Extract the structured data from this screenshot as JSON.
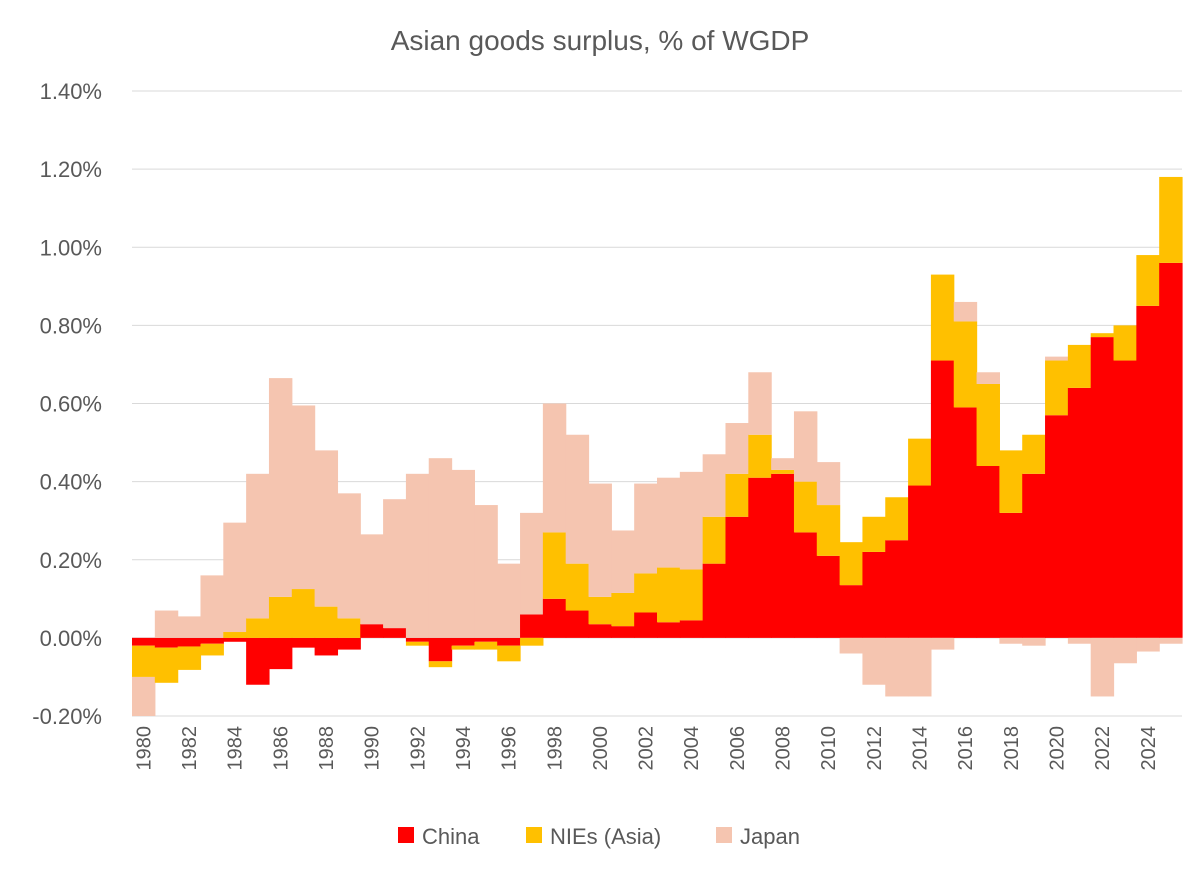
{
  "chart_data": {
    "type": "bar",
    "stacked": true,
    "title": "Asian goods surplus, % of WGDP",
    "xlabel": "",
    "ylabel": "",
    "ylim": [
      -0.002,
      0.014
    ],
    "yticks": [
      -0.002,
      0,
      0.002,
      0.004,
      0.006,
      0.008,
      0.01,
      0.012,
      0.014
    ],
    "ytick_labels": [
      "-0.20%",
      "0.00%",
      "0.20%",
      "0.40%",
      "0.60%",
      "0.80%",
      "1.00%",
      "1.20%",
      "1.40%"
    ],
    "grid": true,
    "legend_position": "bottom",
    "categories": [
      "1980",
      "1981",
      "1982",
      "1983",
      "1984",
      "1985",
      "1986",
      "1987",
      "1988",
      "1989",
      "1990",
      "1991",
      "1992",
      "1993",
      "1994",
      "1995",
      "1996",
      "1997",
      "1998",
      "1999",
      "2000",
      "2001",
      "2002",
      "2003",
      "2004",
      "2005",
      "2006",
      "2007",
      "2008",
      "2009",
      "2010",
      "2011",
      "2012",
      "2013",
      "2014",
      "2015",
      "2016",
      "2017",
      "2018",
      "2019",
      "2020",
      "2021",
      "2022",
      "2023",
      "2024",
      "2025"
    ],
    "x_tick_labels": [
      "1980",
      "1982",
      "1984",
      "1986",
      "1988",
      "1990",
      "1992",
      "1994",
      "1996",
      "1998",
      "2000",
      "2002",
      "2004",
      "2006",
      "2008",
      "2010",
      "2012",
      "2014",
      "2016",
      "2018",
      "2020",
      "2022",
      "2024"
    ],
    "series": [
      {
        "name": "China",
        "color": "#ff0000",
        "values": [
          -0.0002,
          -0.00025,
          -0.00022,
          -0.00015,
          -0.0001,
          -0.0012,
          -0.0008,
          -0.00025,
          -0.00045,
          -0.0003,
          0.00035,
          0.00025,
          -0.0001,
          -0.0006,
          -0.0002,
          -0.0001,
          -0.0002,
          0.0006,
          0.001,
          0.0007,
          0.00035,
          0.0003,
          0.00065,
          0.0004,
          0.00045,
          0.0019,
          0.0031,
          0.0041,
          0.0042,
          0.0027,
          0.0021,
          0.00135,
          0.0022,
          0.0025,
          0.0039,
          0.0071,
          0.0059,
          0.0044,
          0.0032,
          0.0042,
          0.0057,
          0.0064,
          0.0077,
          0.0071,
          0.0085,
          0.0096
        ]
      },
      {
        "name": "NIEs (Asia)",
        "color": "#ffc000",
        "values": [
          -0.0008,
          -0.0009,
          -0.0006,
          -0.0003,
          0.00015,
          0.0005,
          0.00105,
          0.00125,
          0.0008,
          0.0005,
          0.0,
          0.0,
          -0.0001,
          -0.00015,
          -0.0001,
          -0.0002,
          -0.0004,
          -0.0002,
          0.0017,
          0.0012,
          0.0007,
          0.00085,
          0.001,
          0.0014,
          0.0013,
          0.0012,
          0.0011,
          0.0011,
          0.0001,
          0.0013,
          0.0013,
          0.0011,
          0.0009,
          0.0011,
          0.0012,
          0.0022,
          0.0022,
          0.0021,
          0.0016,
          0.001,
          0.0014,
          0.0011,
          0.0001,
          0.0009,
          0.0013,
          0.0022
        ]
      },
      {
        "name": "Japan",
        "color": "#f5c5b0",
        "values": [
          -0.001,
          0.0007,
          0.00055,
          0.0016,
          0.0028,
          0.0037,
          0.0056,
          0.0047,
          0.004,
          0.0032,
          0.0023,
          0.0033,
          0.0042,
          0.0046,
          0.0043,
          0.0034,
          0.0019,
          0.0026,
          0.0033,
          0.0033,
          0.0029,
          0.0016,
          0.0023,
          0.0023,
          0.0025,
          0.0016,
          0.0013,
          0.0016,
          0.0003,
          0.0018,
          0.0011,
          -0.0004,
          -0.0012,
          -0.0015,
          -0.0015,
          -0.0003,
          0.0005,
          0.0003,
          -0.00015,
          -0.0002,
          0.0001,
          -0.00015,
          -0.0015,
          -0.00065,
          -0.00035,
          -0.00015
        ]
      }
    ]
  }
}
